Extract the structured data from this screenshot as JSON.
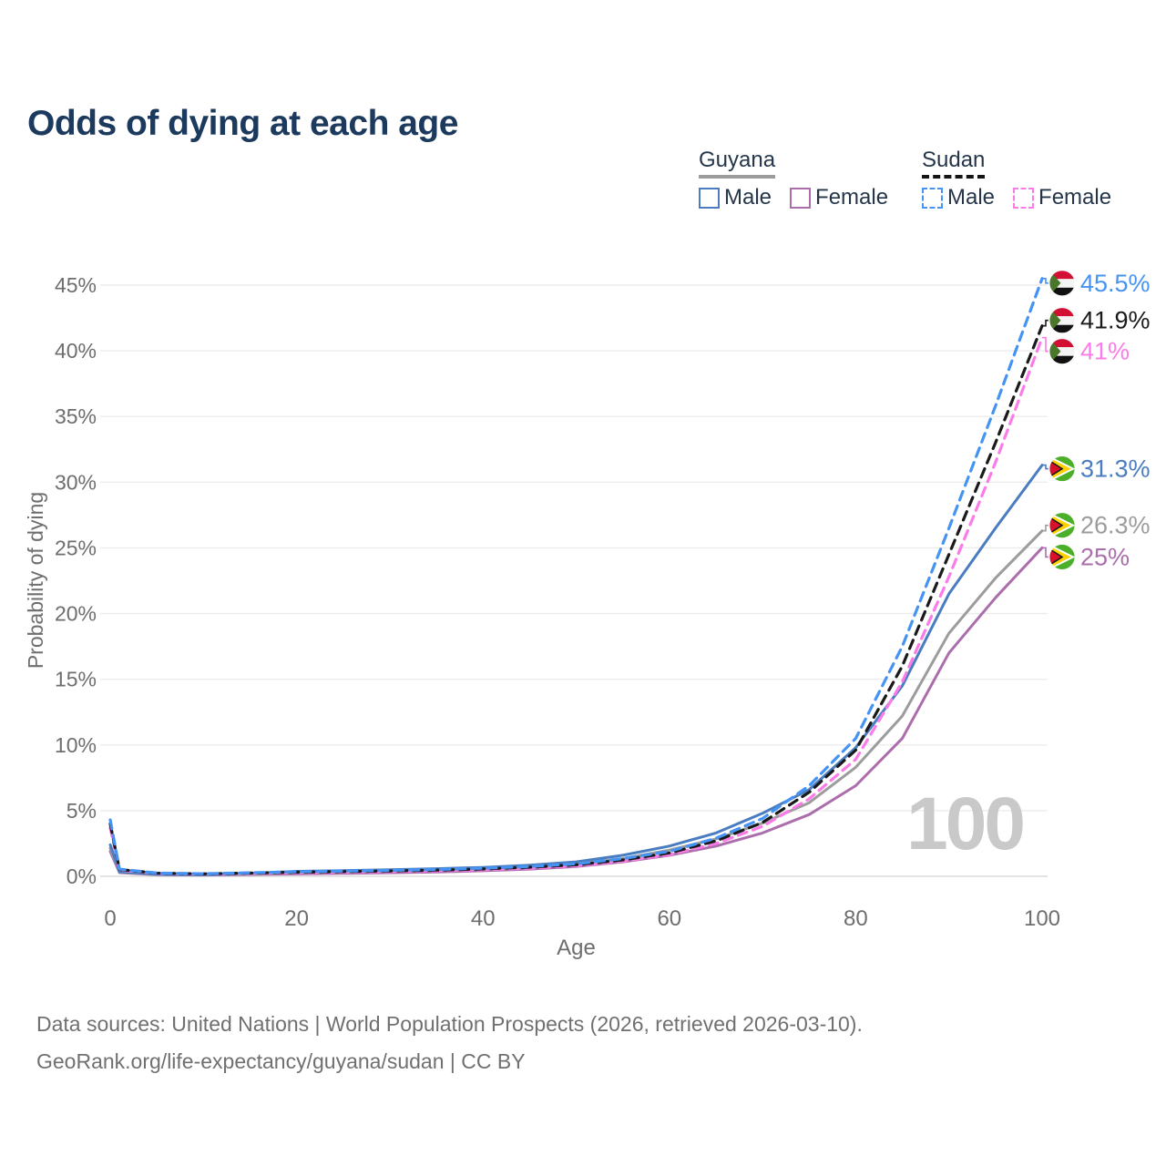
{
  "title": "Odds of dying at each age",
  "legend": {
    "groups": [
      {
        "label": "Guyana",
        "line_style": "solid",
        "line_color": "#9c9c9c",
        "items": [
          {
            "label": "Male",
            "color": "#4a7dc0",
            "dashed": false
          },
          {
            "label": "Female",
            "color": "#ab6dab",
            "dashed": false
          }
        ]
      },
      {
        "label": "Sudan",
        "line_style": "dashed",
        "line_color": "#151515",
        "items": [
          {
            "label": "Male",
            "color": "#4593f2",
            "dashed": true
          },
          {
            "label": "Female",
            "color": "#fb7ce8",
            "dashed": true
          }
        ]
      }
    ]
  },
  "watermark_age": "100",
  "footer": {
    "line1": "Data sources: United Nations | World Population Prospects (2026, retrieved 2026-03-10).",
    "line2": "GeoRank.org/life-expectancy/guyana/sudan | CC BY"
  },
  "chart_data": {
    "type": "line",
    "title": "Odds of dying at each age",
    "xlabel": "Age",
    "ylabel": "Probability of dying",
    "xlim": [
      0,
      100
    ],
    "ylim": [
      0,
      45.5
    ],
    "grid": "horizontal-only",
    "legend_position": "top-right",
    "x_ticks": [
      {
        "v": 0,
        "label": "0"
      },
      {
        "v": 20,
        "label": "20"
      },
      {
        "v": 40,
        "label": "40"
      },
      {
        "v": 60,
        "label": "60"
      },
      {
        "v": 80,
        "label": "80"
      },
      {
        "v": 100,
        "label": "100"
      }
    ],
    "y_ticks": [
      {
        "v": 0,
        "label": "0%"
      },
      {
        "v": 5,
        "label": "5%"
      },
      {
        "v": 10,
        "label": "10%"
      },
      {
        "v": 15,
        "label": "15%"
      },
      {
        "v": 20,
        "label": "20%"
      },
      {
        "v": 25,
        "label": "25%"
      },
      {
        "v": 30,
        "label": "30%"
      },
      {
        "v": 35,
        "label": "35%"
      },
      {
        "v": 40,
        "label": "40%"
      },
      {
        "v": 45,
        "label": "45%"
      }
    ],
    "x": [
      0,
      1,
      5,
      10,
      15,
      20,
      25,
      30,
      35,
      40,
      45,
      50,
      55,
      60,
      65,
      70,
      75,
      80,
      85,
      90,
      95,
      100
    ],
    "series": [
      {
        "id": "guyana_female",
        "name": "Guyana Female",
        "country": "Guyana",
        "sex": "Female",
        "color": "#ab6dab",
        "dashed": false,
        "flag": "guyana",
        "end_label": "25%",
        "values": [
          1.9,
          0.28,
          0.12,
          0.1,
          0.14,
          0.18,
          0.22,
          0.27,
          0.33,
          0.42,
          0.55,
          0.75,
          1.1,
          1.6,
          2.3,
          3.3,
          4.7,
          6.9,
          10.5,
          17.0,
          21.2,
          25.0
        ]
      },
      {
        "id": "guyana_both",
        "name": "Guyana Both sexes",
        "country": "Guyana",
        "sex": "Both",
        "color": "#9c9c9c",
        "dashed": false,
        "flag": "guyana",
        "end_label": "26.3%",
        "values": [
          2.15,
          0.32,
          0.14,
          0.11,
          0.18,
          0.28,
          0.33,
          0.39,
          0.46,
          0.55,
          0.7,
          0.93,
          1.35,
          2.0,
          2.85,
          4.05,
          5.6,
          8.3,
          12.2,
          18.5,
          22.7,
          26.3
        ]
      },
      {
        "id": "guyana_male",
        "name": "Guyana Male",
        "country": "Guyana",
        "sex": "Male",
        "color": "#4a7dc0",
        "dashed": false,
        "flag": "guyana",
        "end_label": "31.3%",
        "values": [
          2.4,
          0.35,
          0.15,
          0.12,
          0.22,
          0.38,
          0.44,
          0.5,
          0.58,
          0.68,
          0.85,
          1.1,
          1.6,
          2.3,
          3.3,
          4.8,
          6.6,
          9.8,
          14.5,
          21.5,
          26.5,
          31.3
        ]
      },
      {
        "id": "sudan_female",
        "name": "Sudan Female",
        "country": "Sudan",
        "sex": "Female",
        "color": "#fb7ce8",
        "dashed": true,
        "flag": "sudan",
        "end_label": "41%",
        "values": [
          3.7,
          0.48,
          0.22,
          0.18,
          0.22,
          0.27,
          0.31,
          0.36,
          0.42,
          0.5,
          0.62,
          0.8,
          1.15,
          1.65,
          2.5,
          3.8,
          5.9,
          8.9,
          14.8,
          22.8,
          31.5,
          41.0
        ]
      },
      {
        "id": "sudan_both",
        "name": "Sudan Both sexes",
        "country": "Sudan",
        "sex": "Both",
        "color": "#1a1a1a",
        "dashed": true,
        "flag": "sudan",
        "end_label": "41.9%",
        "values": [
          4.0,
          0.52,
          0.24,
          0.19,
          0.25,
          0.31,
          0.36,
          0.41,
          0.47,
          0.56,
          0.69,
          0.88,
          1.25,
          1.78,
          2.7,
          4.1,
          6.4,
          9.6,
          16.0,
          24.5,
          33.0,
          41.9
        ]
      },
      {
        "id": "sudan_male",
        "name": "Sudan Male",
        "country": "Sudan",
        "sex": "Male",
        "color": "#4593f2",
        "dashed": true,
        "flag": "sudan",
        "end_label": "45.5%",
        "values": [
          4.3,
          0.55,
          0.25,
          0.2,
          0.27,
          0.35,
          0.4,
          0.45,
          0.52,
          0.62,
          0.75,
          0.95,
          1.35,
          1.9,
          2.9,
          4.4,
          6.9,
          10.5,
          17.5,
          26.5,
          35.8,
          45.5
        ]
      }
    ]
  }
}
